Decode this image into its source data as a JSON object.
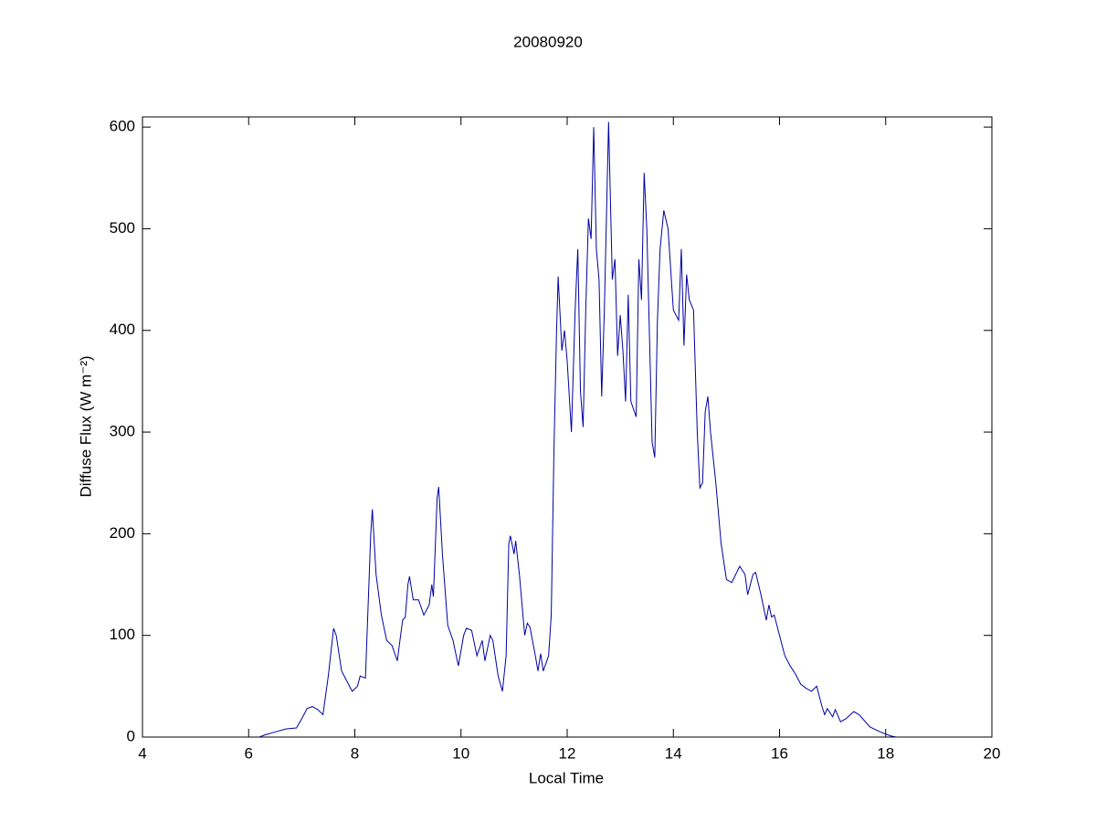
{
  "chart_data": {
    "type": "line",
    "title": "20080920",
    "x_label": "Local Time",
    "y_label": "Diffuse Flux (W m⁻²)",
    "xlim": [
      4,
      20
    ],
    "xticks": [
      4,
      6,
      8,
      10,
      12,
      14,
      16,
      18,
      20
    ],
    "ylim": [
      0,
      610
    ],
    "yticks": [
      0,
      100,
      200,
      300,
      400,
      500,
      600
    ],
    "series": [
      {
        "name": "Diffuse Flux",
        "color": "#0000a0",
        "x": [
          6.2,
          6.3,
          6.5,
          6.7,
          6.9,
          7.0,
          7.1,
          7.2,
          7.3,
          7.4,
          7.5,
          7.6,
          7.65,
          7.75,
          7.85,
          7.95,
          8.05,
          8.1,
          8.2,
          8.3,
          8.33,
          8.4,
          8.5,
          8.6,
          8.7,
          8.8,
          8.9,
          8.95,
          9.0,
          9.03,
          9.1,
          9.2,
          9.3,
          9.4,
          9.45,
          9.48,
          9.55,
          9.58,
          9.65,
          9.75,
          9.85,
          9.95,
          10.05,
          10.1,
          10.2,
          10.3,
          10.4,
          10.45,
          10.55,
          10.6,
          10.7,
          10.78,
          10.85,
          10.9,
          10.93,
          11.0,
          11.03,
          11.1,
          11.2,
          11.25,
          11.3,
          11.4,
          11.45,
          11.5,
          11.55,
          11.65,
          11.7,
          11.75,
          11.8,
          11.83,
          11.9,
          11.95,
          12.0,
          12.08,
          12.15,
          12.2,
          12.25,
          12.3,
          12.35,
          12.4,
          12.45,
          12.5,
          12.55,
          12.6,
          12.65,
          12.7,
          12.78,
          12.85,
          12.9,
          12.95,
          13.0,
          13.05,
          13.1,
          13.15,
          13.2,
          13.3,
          13.35,
          13.4,
          13.45,
          13.5,
          13.55,
          13.6,
          13.65,
          13.7,
          13.75,
          13.82,
          13.9,
          14.0,
          14.1,
          14.15,
          14.2,
          14.25,
          14.3,
          14.38,
          14.45,
          14.5,
          14.55,
          14.6,
          14.65,
          14.7,
          14.8,
          14.9,
          15.0,
          15.1,
          15.25,
          15.35,
          15.4,
          15.5,
          15.55,
          15.65,
          15.75,
          15.8,
          15.85,
          15.9,
          16.0,
          16.1,
          16.2,
          16.3,
          16.4,
          16.5,
          16.6,
          16.7,
          16.8,
          16.85,
          16.9,
          17.0,
          17.05,
          17.15,
          17.25,
          17.4,
          17.5,
          17.7,
          17.9,
          18.1,
          18.2
        ],
        "values": [
          0,
          2,
          5,
          8,
          9,
          18,
          28,
          30,
          27,
          22,
          60,
          107,
          100,
          65,
          55,
          45,
          50,
          60,
          58,
          200,
          224,
          160,
          120,
          95,
          90,
          75,
          115,
          118,
          150,
          158,
          135,
          135,
          120,
          130,
          150,
          138,
          235,
          246,
          180,
          110,
          95,
          70,
          100,
          107,
          105,
          80,
          95,
          75,
          100,
          95,
          60,
          45,
          80,
          190,
          198,
          180,
          193,
          160,
          100,
          112,
          108,
          80,
          65,
          82,
          65,
          80,
          120,
          280,
          400,
          453,
          380,
          400,
          370,
          300,
          420,
          480,
          340,
          305,
          420,
          510,
          490,
          600,
          480,
          450,
          335,
          420,
          605,
          450,
          470,
          375,
          415,
          380,
          330,
          435,
          330,
          315,
          470,
          430,
          555,
          500,
          395,
          290,
          275,
          410,
          480,
          518,
          500,
          420,
          410,
          480,
          385,
          455,
          430,
          420,
          300,
          245,
          250,
          320,
          335,
          300,
          250,
          190,
          155,
          152,
          168,
          160,
          140,
          160,
          162,
          140,
          115,
          130,
          118,
          120,
          100,
          80,
          70,
          62,
          52,
          48,
          45,
          50,
          30,
          22,
          28,
          20,
          27,
          15,
          18,
          25,
          22,
          10,
          5,
          1,
          0
        ]
      }
    ]
  }
}
